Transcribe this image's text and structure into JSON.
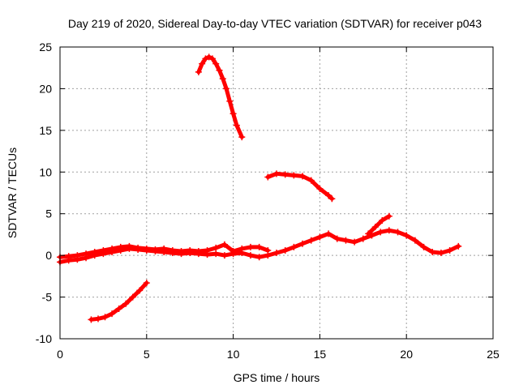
{
  "chart_data": {
    "type": "scatter",
    "title": "Day 219 of 2020, Sidereal Day-to-day VTEC variation (SDTVAR) for receiver p043",
    "xlabel": "GPS time / hours",
    "ylabel": "SDTVAR / TECUs",
    "xlim": [
      0,
      25
    ],
    "ylim": [
      -10,
      25
    ],
    "xticks": [
      0,
      5,
      10,
      15,
      20,
      25
    ],
    "yticks": [
      -10,
      -5,
      0,
      5,
      10,
      15,
      20,
      25
    ],
    "grid": true,
    "marker": "plus",
    "color": "#ff0000",
    "series": [
      {
        "name": "arc-main-low",
        "x": [
          0.0,
          0.5,
          1.0,
          1.5,
          2.0,
          2.5,
          3.0,
          3.5,
          4.0,
          4.5,
          5.0,
          5.5,
          6.0,
          6.5,
          7.0,
          7.5,
          8.0,
          8.5,
          9.0,
          9.5,
          10.0,
          10.5,
          11.0,
          11.5,
          12.0,
          12.5,
          13.0,
          13.5,
          14.0,
          14.5,
          15.0,
          15.5,
          16.0,
          16.5,
          17.0,
          17.5,
          18.0,
          18.5,
          19.0,
          19.5,
          20.0,
          20.5,
          21.0,
          21.5,
          22.0,
          22.5,
          23.0
        ],
        "y": [
          -0.8,
          -0.6,
          -0.5,
          -0.3,
          0.0,
          0.2,
          0.4,
          0.6,
          0.8,
          0.7,
          0.6,
          0.5,
          0.4,
          0.3,
          0.2,
          0.3,
          0.2,
          0.1,
          0.2,
          0.0,
          0.2,
          0.3,
          0.0,
          -0.2,
          0.0,
          0.3,
          0.6,
          1.0,
          1.4,
          1.8,
          2.2,
          2.6,
          2.0,
          1.8,
          1.6,
          2.0,
          2.4,
          2.8,
          3.0,
          2.8,
          2.4,
          1.8,
          1.0,
          0.4,
          0.3,
          0.6,
          1.1
        ]
      },
      {
        "name": "arc-main-high",
        "x": [
          0.0,
          0.5,
          1.0,
          1.5,
          2.0,
          2.5,
          3.0,
          3.5,
          4.0,
          4.5,
          5.0,
          5.5,
          6.0,
          6.5,
          7.0,
          7.5,
          8.0,
          8.5,
          9.0,
          9.5,
          10.0,
          10.5,
          11.0,
          11.5,
          12.0
        ],
        "y": [
          -0.2,
          -0.1,
          0.0,
          0.2,
          0.4,
          0.6,
          0.8,
          1.0,
          1.1,
          0.9,
          0.8,
          0.7,
          0.8,
          0.6,
          0.5,
          0.6,
          0.5,
          0.6,
          0.9,
          1.3,
          0.5,
          0.8,
          1.0,
          1.0,
          0.6
        ]
      },
      {
        "name": "arc-negative",
        "x": [
          1.8,
          2.2,
          2.6,
          3.0,
          3.4,
          3.8,
          4.2,
          4.6,
          5.0
        ],
        "y": [
          -7.7,
          -7.6,
          -7.4,
          -7.0,
          -6.4,
          -5.8,
          -5.0,
          -4.2,
          -3.3
        ]
      },
      {
        "name": "arc-high-peak",
        "x": [
          8.0,
          8.2,
          8.4,
          8.6,
          8.8,
          9.0,
          9.2,
          9.4,
          9.6,
          9.8,
          10.0,
          10.2,
          10.5
        ],
        "y": [
          22.0,
          23.0,
          23.6,
          23.8,
          23.6,
          23.0,
          22.2,
          21.2,
          20.0,
          18.5,
          17.0,
          15.6,
          14.2
        ]
      },
      {
        "name": "arc-mid",
        "x": [
          12.0,
          12.5,
          13.0,
          13.5,
          14.0,
          14.5,
          15.0,
          15.5,
          15.7
        ],
        "y": [
          9.4,
          9.8,
          9.7,
          9.6,
          9.5,
          9.0,
          8.0,
          7.2,
          6.8
        ]
      },
      {
        "name": "arc-rise",
        "x": [
          17.8,
          18.2,
          18.6,
          19.0
        ],
        "y": [
          2.6,
          3.4,
          4.2,
          4.7
        ]
      }
    ]
  }
}
